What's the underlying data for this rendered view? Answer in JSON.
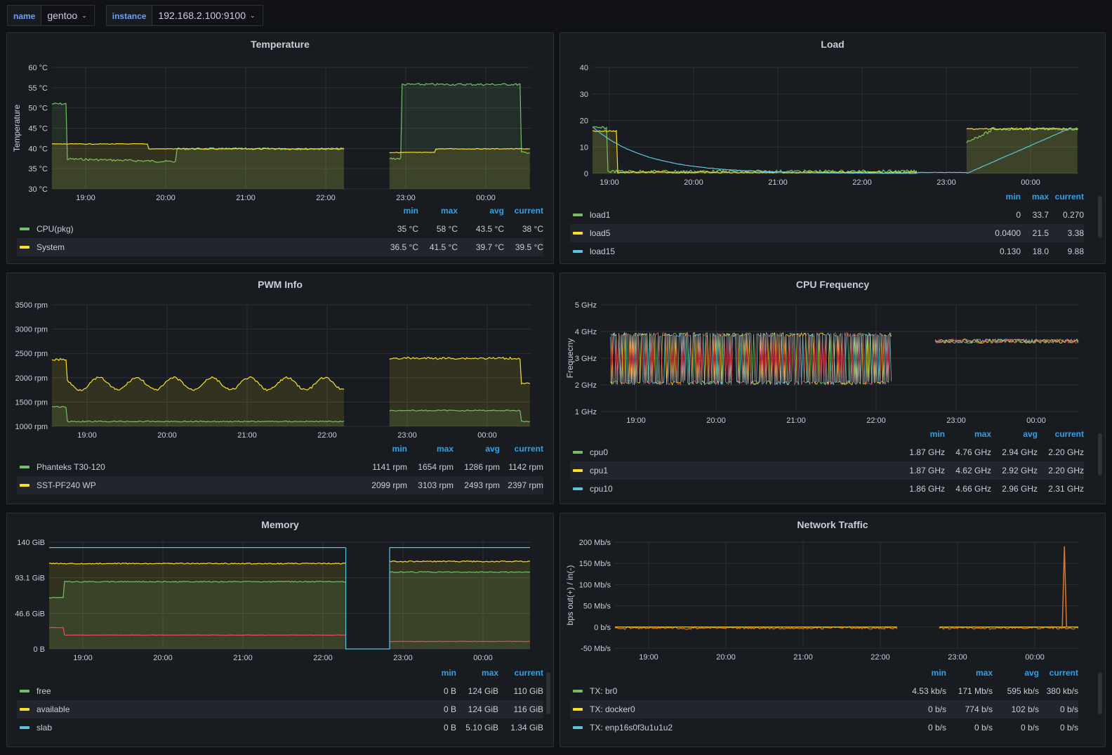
{
  "variables": [
    {
      "label": "name",
      "value": "gentoo"
    },
    {
      "label": "instance",
      "value": "192.168.2.100:9100"
    }
  ],
  "time_ticks": [
    "19:00",
    "20:00",
    "21:00",
    "22:00",
    "23:00",
    "00:00"
  ],
  "panels": {
    "temperature": {
      "title": "Temperature",
      "ylabel": "Temperature",
      "yticks": [
        "60 °C",
        "55 °C",
        "50 °C",
        "45 °C",
        "40 °C",
        "35 °C",
        "30 °C"
      ],
      "legend_cols": [
        "min",
        "max",
        "avg",
        "current"
      ],
      "legend": [
        {
          "name": "CPU(pkg)",
          "color": "#73bf69",
          "values": [
            "35 °C",
            "58 °C",
            "43.5 °C",
            "38 °C"
          ]
        },
        {
          "name": "System",
          "color": "#fade2a",
          "values": [
            "36.5 °C",
            "41.5 °C",
            "39.7 °C",
            "39.5 °C"
          ]
        }
      ]
    },
    "load": {
      "title": "Load",
      "yticks": [
        "40",
        "30",
        "20",
        "10",
        "0"
      ],
      "legend_cols": [
        "min",
        "max",
        "current"
      ],
      "legend": [
        {
          "name": "load1",
          "color": "#73bf69",
          "values": [
            "0",
            "33.7",
            "0.270"
          ]
        },
        {
          "name": "load5",
          "color": "#fade2a",
          "values": [
            "0.0400",
            "21.5",
            "3.38"
          ]
        },
        {
          "name": "load15",
          "color": "#5dc4e0",
          "values": [
            "0.130",
            "18.0",
            "9.88"
          ]
        }
      ]
    },
    "pwm": {
      "title": "PWM Info",
      "yticks": [
        "3500 rpm",
        "3000 rpm",
        "2500 rpm",
        "2000 rpm",
        "1500 rpm",
        "1000 rpm"
      ],
      "legend_cols": [
        "min",
        "max",
        "avg",
        "current"
      ],
      "legend": [
        {
          "name": "Phanteks T30-120",
          "color": "#73bf69",
          "values": [
            "1141 rpm",
            "1654 rpm",
            "1286 rpm",
            "1142 rpm"
          ]
        },
        {
          "name": "SST-PF240 WP",
          "color": "#fade2a",
          "values": [
            "2099 rpm",
            "3103 rpm",
            "2493 rpm",
            "2397 rpm"
          ]
        }
      ]
    },
    "cpufreq": {
      "title": "CPU Frequency",
      "ylabel": "Frequecny",
      "yticks": [
        "5 GHz",
        "4 GHz",
        "3 GHz",
        "2 GHz",
        "1 GHz"
      ],
      "legend_cols": [
        "min",
        "max",
        "avg",
        "current"
      ],
      "legend": [
        {
          "name": "cpu0",
          "color": "#73bf69",
          "values": [
            "1.87 GHz",
            "4.76 GHz",
            "2.94 GHz",
            "2.20 GHz"
          ]
        },
        {
          "name": "cpu1",
          "color": "#fade2a",
          "values": [
            "1.87 GHz",
            "4.62 GHz",
            "2.92 GHz",
            "2.20 GHz"
          ]
        },
        {
          "name": "cpu10",
          "color": "#5dc4e0",
          "values": [
            "1.86 GHz",
            "4.66 GHz",
            "2.96 GHz",
            "2.31 GHz"
          ]
        }
      ]
    },
    "memory": {
      "title": "Memory",
      "yticks": [
        "140 GiB",
        "93.1 GiB",
        "46.6 GiB",
        "0 B"
      ],
      "legend_cols": [
        "min",
        "max",
        "current"
      ],
      "legend": [
        {
          "name": "free",
          "color": "#73bf69",
          "values": [
            "0 B",
            "124 GiB",
            "110 GiB"
          ]
        },
        {
          "name": "available",
          "color": "#fade2a",
          "values": [
            "0 B",
            "124 GiB",
            "116 GiB"
          ]
        },
        {
          "name": "slab",
          "color": "#5dc4e0",
          "values": [
            "0 B",
            "5.10 GiB",
            "1.34 GiB"
          ]
        }
      ]
    },
    "network": {
      "title": "Network Traffic",
      "ylabel": "bps out(+) / in(-)",
      "yticks": [
        "200 Mb/s",
        "150 Mb/s",
        "100 Mb/s",
        "50 Mb/s",
        "0 b/s",
        "-50 Mb/s"
      ],
      "legend_cols": [
        "min",
        "max",
        "avg",
        "current"
      ],
      "legend": [
        {
          "name": "TX: br0",
          "color": "#73bf69",
          "values": [
            "4.53 kb/s",
            "171 Mb/s",
            "595 kb/s",
            "380 kb/s"
          ]
        },
        {
          "name": "TX: docker0",
          "color": "#fade2a",
          "values": [
            "0 b/s",
            "774 b/s",
            "102 b/s",
            "0 b/s"
          ]
        },
        {
          "name": "TX: enp16s0f3u1u1u2",
          "color": "#5dc4e0",
          "values": [
            "0 b/s",
            "0 b/s",
            "0 b/s",
            "0 b/s"
          ]
        }
      ]
    }
  }
}
